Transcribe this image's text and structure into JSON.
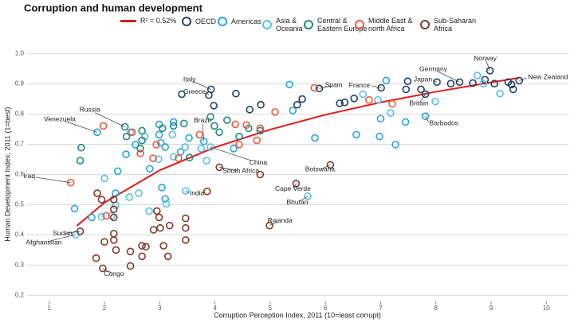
{
  "chart_data": {
    "type": "scatter",
    "title": "Corruption and human development",
    "x_label": "Corruption Perception Index, 2011 (10=least corrupt)",
    "y_label": "Human Development Index, 2011 (1=best)",
    "xlim": [
      0.6,
      10.4
    ],
    "ylim": [
      0.18,
      1.02
    ],
    "xticks": [
      1,
      2,
      3,
      4,
      5,
      6,
      7,
      8,
      9,
      10
    ],
    "yticks": [
      0.2,
      0.3,
      0.4,
      0.5,
      0.6,
      0.7,
      0.8,
      0.9,
      {
        "value": 1,
        "label": "1.0"
      }
    ],
    "grid": true,
    "trend": {
      "name": "R² = 0.52%",
      "color": "#e41a1c",
      "x": [
        1.5,
        2,
        3,
        4,
        5,
        6,
        7,
        8,
        9,
        9.5
      ],
      "values": [
        0.43,
        0.507,
        0.614,
        0.69,
        0.749,
        0.798,
        0.839,
        0.874,
        0.905,
        0.92
      ]
    },
    "series": [
      {
        "name": "OECD",
        "color": "#24405e",
        "x": [
          8.98,
          9.51,
          9.31,
          9.4,
          9.37,
          8.89,
          8.67,
          8.43,
          8.27,
          8.02,
          7.73,
          7.49,
          7.46,
          7.01,
          6.52,
          6.26,
          6.35,
          5.89,
          5.58,
          5.49,
          4.83,
          4.63,
          4.38,
          3.93,
          3.89,
          3.4,
          7.81,
          9.06,
          3.98
        ],
        "values": [
          0.944,
          0.911,
          0.906,
          0.882,
          0.898,
          0.914,
          0.903,
          0.906,
          0.901,
          0.906,
          0.882,
          0.909,
          0.882,
          0.887,
          0.852,
          0.836,
          0.839,
          0.885,
          0.85,
          0.831,
          0.831,
          0.815,
          0.868,
          0.882,
          0.863,
          0.866,
          0.866,
          0.901,
          0.828
        ],
        "labels": [
          "Norway",
          "New Zealand",
          null,
          null,
          null,
          null,
          null,
          "Germany",
          null,
          "Japan",
          null,
          null,
          null,
          "France",
          null,
          null,
          null,
          "Spain",
          null,
          null,
          null,
          null,
          null,
          "Italy",
          "Greece",
          null,
          "Britain",
          null,
          null
        ]
      },
      {
        "name": "Americas",
        "color": "#27a4dc",
        "x": [
          7.81,
          1.87,
          3.8,
          1.46,
          1.77,
          2.2,
          2.24,
          2.39,
          2.56,
          2.99,
          2.99,
          3.02,
          3.1,
          3.38,
          3.25,
          3.53,
          4.34,
          5.35,
          5.41,
          5.81,
          6.56,
          7.0,
          7.1,
          7.45,
          6.98,
          7.27,
          2.82,
          3.04,
          3.1
        ],
        "values": [
          0.793,
          0.74,
          0.71,
          0.487,
          0.458,
          0.538,
          0.611,
          0.667,
          0.699,
          0.766,
          0.732,
          0.705,
          0.691,
          0.675,
          0.774,
          0.721,
          0.686,
          0.898,
          0.812,
          0.721,
          0.732,
          0.785,
          0.911,
          0.774,
          0.726,
          0.699,
          0.619,
          0.557,
          0.519
        ],
        "labels": [
          "Barbados",
          "Venezuela",
          "Brazil",
          null,
          null,
          null,
          null,
          null,
          null,
          null,
          null,
          null,
          null,
          null,
          null,
          null,
          null,
          null,
          null,
          null,
          null,
          null,
          null,
          null,
          null,
          null,
          null,
          null,
          null
        ]
      },
      {
        "name": "Asia &\nOceania",
        "color": "#56c0e8",
        "x": [
          3.92,
          3.47,
          5.68,
          1.48,
          8.75,
          8.86,
          9.16,
          7.99,
          6.95,
          6.68,
          7.18,
          3.23,
          3.46,
          3.75,
          2.81,
          2.62,
          2.45,
          2.2,
          2.13,
          1.95,
          3.12,
          2.0,
          3.25,
          2.47,
          2.73,
          2.98,
          3.85
        ],
        "values": [
          0.691,
          0.546,
          0.528,
          0.401,
          0.928,
          0.901,
          0.868,
          0.842,
          0.847,
          0.866,
          0.804,
          0.732,
          0.691,
          0.686,
          0.479,
          0.538,
          0.525,
          0.498,
          0.463,
          0.46,
          0.503,
          0.587,
          0.659,
          0.74,
          0.726,
          0.651,
          0.646
        ],
        "labels": [
          "China",
          "India",
          "Bhutan",
          "Afghanistan",
          null,
          null,
          null,
          null,
          null,
          null,
          null,
          null,
          null,
          null,
          null,
          null,
          null,
          null,
          null,
          null,
          null,
          null,
          null,
          null,
          null,
          null,
          null
        ]
      },
      {
        "name": "Central &\nEastern Europe",
        "color": "#1f8a80",
        "x": [
          2.37,
          1.58,
          1.56,
          2.4,
          2.68,
          2.68,
          2.65,
          3.05,
          3.25,
          3.44,
          3.92,
          3.99,
          4.08,
          4.22,
          4.61,
          4.82,
          4.44,
          3.54
        ],
        "values": [
          0.758,
          0.689,
          0.646,
          0.726,
          0.745,
          0.713,
          0.686,
          0.753,
          0.761,
          0.769,
          0.791,
          0.761,
          0.74,
          0.78,
          0.753,
          0.745,
          0.726,
          0.656
        ],
        "labels": [
          "Russia",
          null,
          null,
          null,
          null,
          null,
          null,
          null,
          null,
          null,
          null,
          null,
          null,
          null,
          null,
          null,
          null,
          null
        ]
      },
      {
        "name": "Middle East &\nnorth Africa",
        "color": "#ea5a3e",
        "x": [
          1.39,
          1.98,
          2.5,
          2.94,
          2.88,
          3.34,
          3.72,
          4.37,
          4.57,
          4.44,
          4.76,
          4.82,
          5.09,
          5.8,
          6.79,
          7.21,
          2.03,
          2.65
        ],
        "values": [
          0.573,
          0.761,
          0.74,
          0.699,
          0.654,
          0.654,
          0.732,
          0.766,
          0.764,
          0.699,
          0.713,
          0.753,
          0.807,
          0.887,
          0.847,
          0.834,
          0.463,
          0.67
        ],
        "labels": [
          "Iraq",
          null,
          null,
          null,
          null,
          null,
          null,
          null,
          null,
          null,
          null,
          null,
          null,
          null,
          null,
          null,
          null,
          null
        ]
      },
      {
        "name": "Sub-Saharan\nAfrica",
        "color": "#7e3a2b",
        "x": [
          4.08,
          6.09,
          5.47,
          4.99,
          1.56,
          1.97,
          1.87,
          1.95,
          2.17,
          2.17,
          2.17,
          2.17,
          2.17,
          2.21,
          1.85,
          2.0,
          2.47,
          2.47,
          2.68,
          2.75,
          2.68,
          2.89,
          2.95,
          2.99,
          3.01,
          3.07,
          3.15,
          3.18,
          3.47,
          3.47,
          3.47,
          3.86,
          4.82
        ],
        "values": [
          0.624,
          0.632,
          0.57,
          0.431,
          0.412,
          0.289,
          0.538,
          0.517,
          0.517,
          0.485,
          0.458,
          0.404,
          0.383,
          0.35,
          0.323,
          0.377,
          0.345,
          0.297,
          0.364,
          0.361,
          0.329,
          0.417,
          0.479,
          0.458,
          0.423,
          0.364,
          0.329,
          0.431,
          0.455,
          0.423,
          0.383,
          0.544,
          0.6
        ],
        "labels": [
          "South Africa",
          "Botswana",
          "Cape Verde",
          "Rwanda",
          "Sudan",
          "Congo",
          null,
          null,
          null,
          null,
          null,
          null,
          null,
          null,
          null,
          null,
          null,
          null,
          null,
          null,
          null,
          null,
          null,
          null,
          null,
          null,
          null,
          null,
          null,
          null,
          null,
          null,
          null
        ]
      }
    ]
  }
}
